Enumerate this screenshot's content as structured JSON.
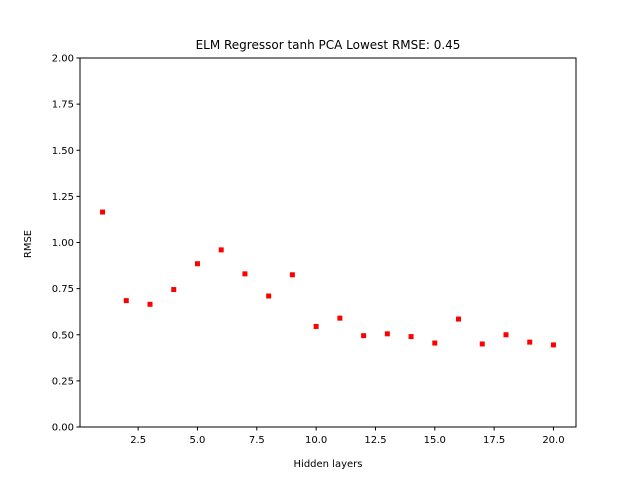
{
  "chart_data": {
    "type": "scatter",
    "title": "ELM Regressor tanh PCA Lowest RMSE: 0.45",
    "xlabel": "Hidden layers",
    "ylabel": "RMSE",
    "xlim": [
      0.05,
      20.95
    ],
    "ylim": [
      0,
      2.0
    ],
    "xticks": [
      2.5,
      5.0,
      7.5,
      10.0,
      12.5,
      15.0,
      17.5,
      20.0
    ],
    "xtick_labels": [
      "2.5",
      "5.0",
      "7.5",
      "10.0",
      "12.5",
      "15.0",
      "17.5",
      "20.0"
    ],
    "yticks": [
      0.0,
      0.25,
      0.5,
      0.75,
      1.0,
      1.25,
      1.5,
      1.75,
      2.0
    ],
    "ytick_labels": [
      "0.00",
      "0.25",
      "0.50",
      "0.75",
      "1.00",
      "1.25",
      "1.50",
      "1.75",
      "2.00"
    ],
    "grid": false,
    "marker_color": "#ff0000",
    "series": [
      {
        "x": [
          1,
          2,
          3,
          4,
          5,
          6,
          7,
          8,
          9,
          10,
          11,
          12,
          13,
          14,
          15,
          16,
          17,
          18,
          19,
          20
        ],
        "y": [
          1.165,
          0.685,
          0.665,
          0.745,
          0.885,
          0.96,
          0.83,
          0.71,
          0.825,
          0.545,
          0.59,
          0.495,
          0.505,
          0.49,
          0.455,
          0.585,
          0.45,
          0.5,
          0.46,
          0.445
        ]
      }
    ]
  }
}
